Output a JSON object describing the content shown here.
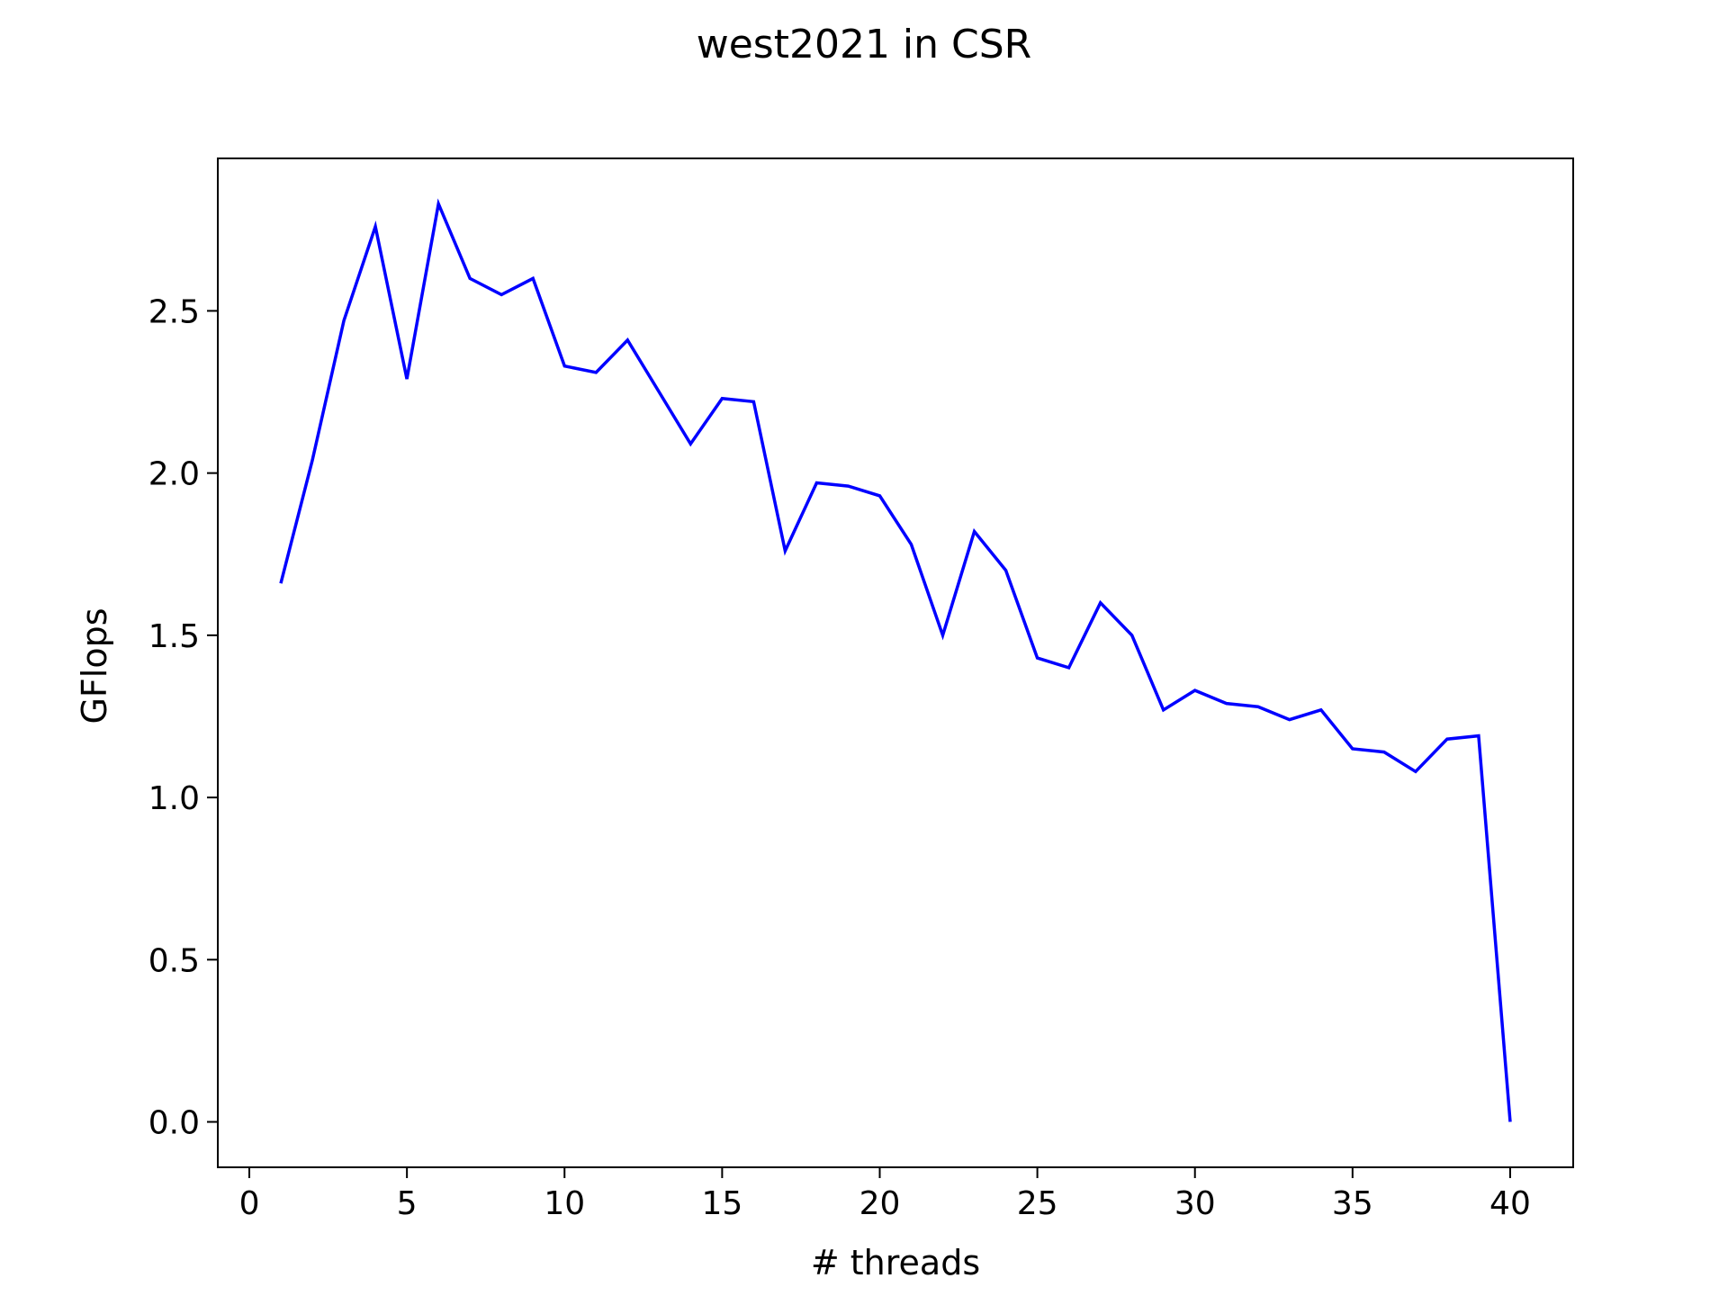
{
  "chart_data": {
    "type": "line",
    "title": "west2021 in CSR",
    "xlabel": "# threads",
    "ylabel": "GFlops",
    "xlim": [
      -1,
      42
    ],
    "ylim": [
      -0.14,
      2.97
    ],
    "xticks": [
      0,
      5,
      10,
      15,
      20,
      25,
      30,
      35,
      40
    ],
    "yticks": [
      0.0,
      0.5,
      1.0,
      1.5,
      2.0,
      2.5
    ],
    "ytick_labels": [
      "0.0",
      "0.5",
      "1.0",
      "1.5",
      "2.0",
      "2.5"
    ],
    "grid": false,
    "legend": "none",
    "series": [
      {
        "color": "#0000ff",
        "x": [
          1,
          2,
          3,
          4,
          5,
          6,
          7,
          8,
          9,
          10,
          11,
          12,
          13,
          14,
          15,
          16,
          17,
          18,
          19,
          20,
          21,
          22,
          23,
          24,
          25,
          26,
          27,
          28,
          29,
          30,
          31,
          32,
          33,
          34,
          35,
          36,
          37,
          38,
          39,
          40
        ],
        "y": [
          1.66,
          2.04,
          2.47,
          2.76,
          2.29,
          2.83,
          2.6,
          2.55,
          2.6,
          2.33,
          2.31,
          2.41,
          2.25,
          2.09,
          2.23,
          2.22,
          1.76,
          1.97,
          1.96,
          1.93,
          1.78,
          1.5,
          1.82,
          1.7,
          1.43,
          1.4,
          1.6,
          1.5,
          1.27,
          1.33,
          1.29,
          1.28,
          1.24,
          1.27,
          1.15,
          1.14,
          1.08,
          1.18,
          1.19,
          0.0
        ]
      }
    ]
  }
}
